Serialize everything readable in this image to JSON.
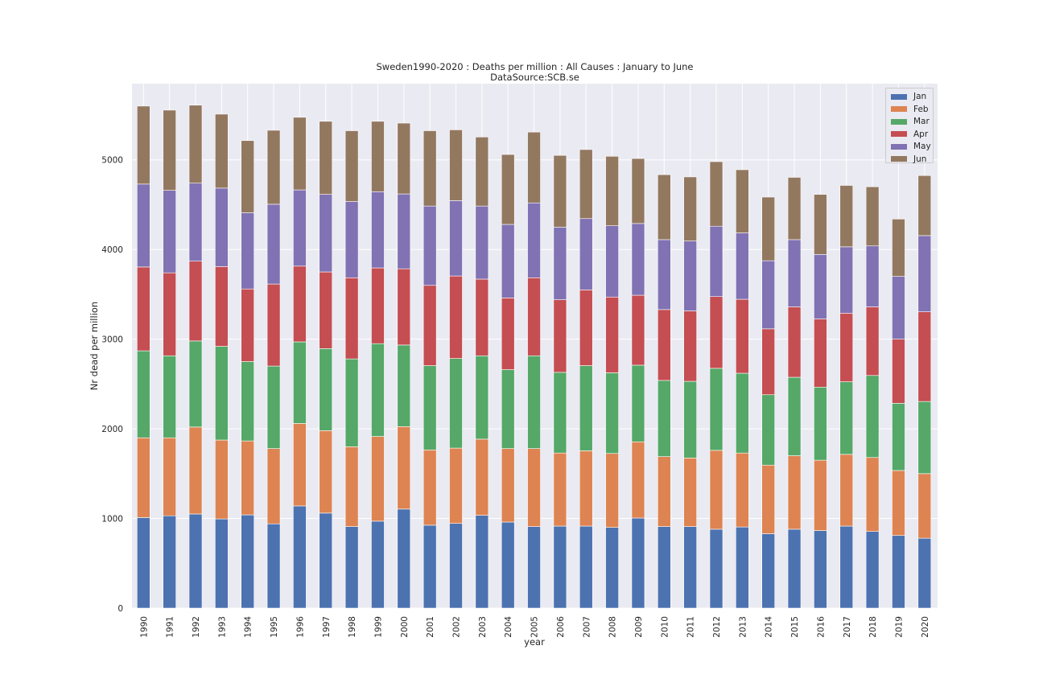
{
  "chart_data": {
    "type": "bar",
    "stacked": true,
    "title": "Sweden1990-2020 : Deaths per million : All Causes : January to June",
    "subtitle": "DataSource:SCB.se",
    "xlabel": "year",
    "ylabel": "Nr dead per million",
    "ylim": [
      0,
      5850
    ],
    "yticks": [
      0,
      1000,
      2000,
      3000,
      4000,
      5000
    ],
    "grid": true,
    "legend_position": "top-right",
    "categories": [
      "1990",
      "1991",
      "1992",
      "1993",
      "1994",
      "1995",
      "1996",
      "1997",
      "1998",
      "1999",
      "2000",
      "2001",
      "2002",
      "2003",
      "2004",
      "2005",
      "2006",
      "2007",
      "2008",
      "2009",
      "2010",
      "2011",
      "2012",
      "2013",
      "2014",
      "2015",
      "2016",
      "2017",
      "2018",
      "2019",
      "2020"
    ],
    "series": [
      {
        "name": "Jan",
        "color": "#4c72b0",
        "values": [
          1010,
          1030,
          1050,
          995,
          1040,
          940,
          1140,
          1060,
          910,
          970,
          1105,
          925,
          945,
          1035,
          960,
          910,
          915,
          915,
          900,
          1005,
          910,
          910,
          880,
          905,
          830,
          880,
          865,
          915,
          855,
          810,
          780
        ]
      },
      {
        "name": "Feb",
        "color": "#dd8452",
        "values": [
          890,
          870,
          970,
          880,
          825,
          840,
          920,
          920,
          890,
          945,
          920,
          840,
          840,
          850,
          820,
          870,
          815,
          840,
          825,
          850,
          780,
          765,
          880,
          825,
          765,
          820,
          785,
          800,
          825,
          725,
          720
        ]
      },
      {
        "name": "Mar",
        "color": "#55a868",
        "values": [
          970,
          915,
          960,
          1045,
          885,
          920,
          910,
          915,
          980,
          1035,
          910,
          940,
          1000,
          930,
          880,
          1035,
          900,
          950,
          900,
          855,
          850,
          855,
          915,
          890,
          785,
          875,
          815,
          810,
          915,
          750,
          805
        ]
      },
      {
        "name": "Apr",
        "color": "#c44e52",
        "values": [
          935,
          925,
          890,
          890,
          810,
          915,
          845,
          855,
          905,
          845,
          850,
          895,
          920,
          855,
          800,
          870,
          810,
          845,
          845,
          780,
          790,
          785,
          800,
          825,
          735,
          785,
          760,
          765,
          765,
          715,
          1000
        ]
      },
      {
        "name": "May",
        "color": "#8172b3",
        "values": [
          925,
          920,
          870,
          875,
          850,
          890,
          850,
          865,
          850,
          850,
          835,
          885,
          840,
          815,
          820,
          835,
          810,
          795,
          795,
          800,
          780,
          780,
          785,
          740,
          760,
          750,
          720,
          740,
          680,
          700,
          850
        ]
      },
      {
        "name": "Jun",
        "color": "#937860",
        "values": [
          870,
          895,
          870,
          825,
          805,
          825,
          810,
          815,
          790,
          785,
          790,
          840,
          790,
          770,
          780,
          790,
          800,
          770,
          775,
          725,
          725,
          715,
          720,
          705,
          710,
          695,
          670,
          685,
          660,
          640,
          670
        ]
      }
    ]
  }
}
